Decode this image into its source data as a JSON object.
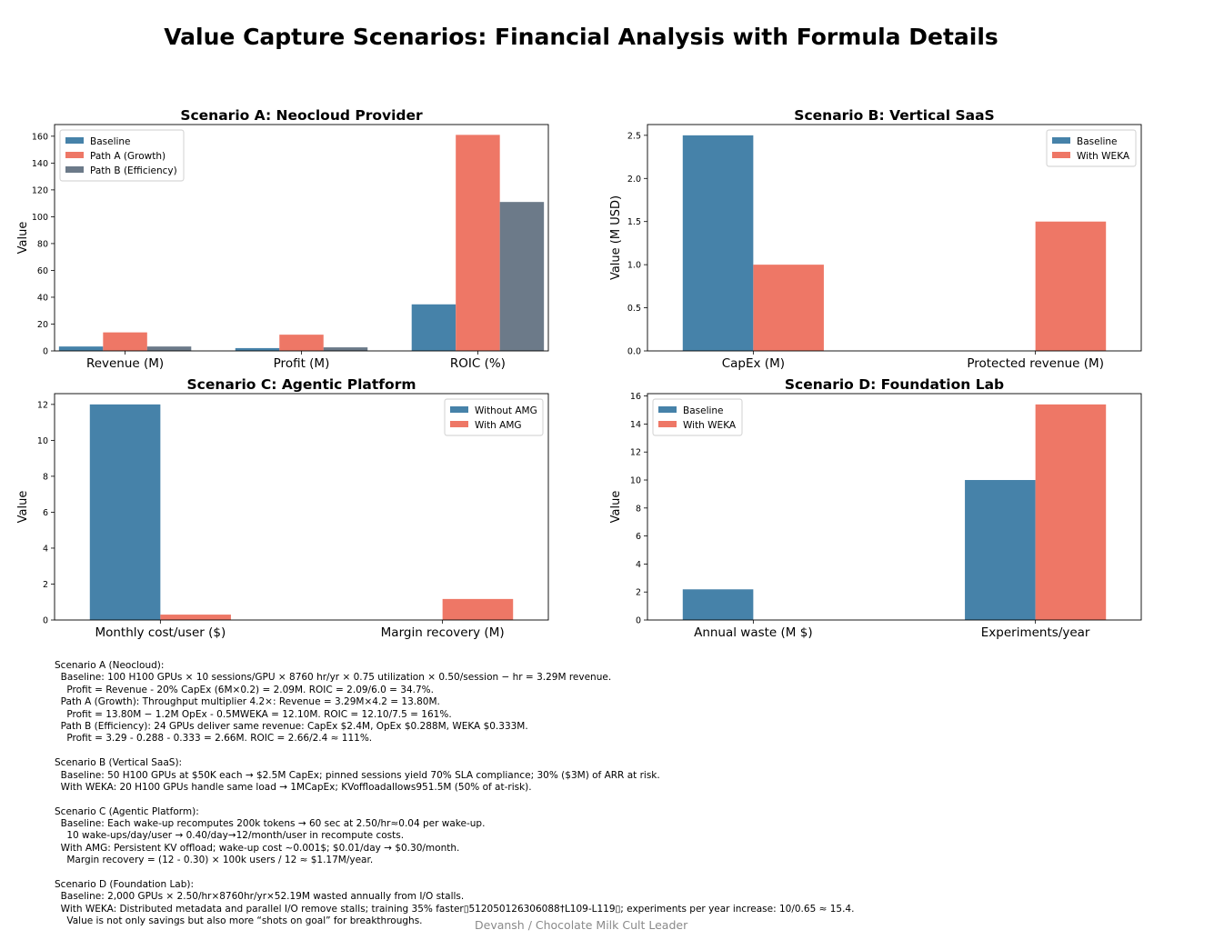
{
  "main_title": "Value Capture Scenarios: Financial Analysis with Formula Details",
  "colors": {
    "blue": "#4682a9",
    "red": "#ee7766",
    "gray": "#6c7a89"
  },
  "chart_data": [
    {
      "type": "bar",
      "title": "Scenario A: Neocloud Provider",
      "xlabel": "",
      "ylabel": "Value",
      "categories": [
        "Revenue (M)",
        "Profit (M)",
        "ROIC (%)"
      ],
      "series": [
        {
          "name": "Baseline",
          "color": "#4682a9",
          "values": [
            3.29,
            2.09,
            34.7
          ]
        },
        {
          "name": "Path A (Growth)",
          "color": "#ee7766",
          "values": [
            13.8,
            12.1,
            161
          ]
        },
        {
          "name": "Path B (Efficiency)",
          "color": "#6c7a89",
          "values": [
            3.29,
            2.66,
            111
          ]
        }
      ],
      "ylim": [
        0,
        168.7
      ],
      "yticks": [
        0,
        20,
        40,
        60,
        80,
        100,
        120,
        140,
        160
      ],
      "legend": "top-left"
    },
    {
      "type": "bar",
      "title": "Scenario B: Vertical SaaS",
      "xlabel": "",
      "ylabel": "Value (M USD)",
      "categories": [
        "CapEx (M)",
        "Protected revenue (M)"
      ],
      "series": [
        {
          "name": "Baseline",
          "color": "#4682a9",
          "values": [
            2.5,
            0
          ]
        },
        {
          "name": "With WEKA",
          "color": "#ee7766",
          "values": [
            1.0,
            1.5
          ]
        }
      ],
      "ylim": [
        0,
        2.625
      ],
      "yticks": [
        0.0,
        0.5,
        1.0,
        1.5,
        2.0,
        2.5
      ],
      "legend": "top-right"
    },
    {
      "type": "bar",
      "title": "Scenario C: Agentic Platform",
      "xlabel": "",
      "ylabel": "Value",
      "categories": [
        "Monthly cost/user ($)",
        "Margin recovery (M)"
      ],
      "series": [
        {
          "name": "Without AMG",
          "color": "#4682a9",
          "values": [
            12,
            0
          ]
        },
        {
          "name": "With AMG",
          "color": "#ee7766",
          "values": [
            0.3,
            1.17
          ]
        }
      ],
      "ylim": [
        0,
        12.6
      ],
      "yticks": [
        0,
        2,
        4,
        6,
        8,
        10,
        12
      ],
      "legend": "top-right"
    },
    {
      "type": "bar",
      "title": "Scenario D: Foundation Lab",
      "xlabel": "",
      "ylabel": "Value",
      "categories": [
        "Annual waste (M $)",
        "Experiments/year"
      ],
      "series": [
        {
          "name": "Baseline",
          "color": "#4682a9",
          "values": [
            2.19,
            10
          ]
        },
        {
          "name": "With WEKA",
          "color": "#ee7766",
          "values": [
            0,
            15.4
          ]
        }
      ],
      "ylim": [
        0,
        16.17
      ],
      "yticks": [
        0,
        2,
        4,
        6,
        8,
        10,
        12,
        14,
        16
      ],
      "legend": "top-left"
    }
  ],
  "notes": [
    "Scenario A (Neocloud):",
    "  Baseline: 100 H100 GPUs × 10 sessions/GPU × 8760 hr/yr × 0.75 utilization × 0.50/session − hr = 3.29M revenue.",
    "    Profit = Revenue - 20% CapEx (6M×0.2) = 2.09M. ROIC = 2.09/6.0 = 34.7%.",
    "  Path A (Growth): Throughput multiplier 4.2×: Revenue = 3.29M×4.2 = 13.80M.",
    "    Profit = 13.80M − 1.2M OpEx - 0.5MWEKA = 12.10M. ROIC = 12.10/7.5 = 161%.",
    "  Path B (Efficiency): 24 GPUs deliver same revenue: CapEx $2.4M, OpEx $0.288M, WEKA $0.333M.",
    "    Profit = 3.29 - 0.288 - 0.333 = 2.66M. ROIC = 2.66/2.4 ≈ 111%.",
    "",
    "Scenario B (Vertical SaaS):",
    "  Baseline: 50 H100 GPUs at $50K each → $2.5M CapEx; pinned sessions yield 70% SLA compliance; 30% ($3M) of ARR at risk.",
    "  With WEKA: 20 H100 GPUs handle same load → 1MCapEx; KVoffloadallows951.5M (50% of at-risk).",
    "",
    "Scenario C (Agentic Platform):",
    "  Baseline: Each wake-up recomputes 200k tokens → 60 sec at 2.50/hr≈0.04 per wake-up.",
    "    10 wake-ups/day/user → 0.40/day→12/month/user in recompute costs.",
    "  With AMG: Persistent KV offload; wake-up cost ~0.001$; $0.01/day → $0.30/month.",
    "    Margin recovery = (12 - 0.30) × 100k users / 12 ≈ $1.17M/year.",
    "",
    "Scenario D (Foundation Lab):",
    "  Baseline: 2,000 GPUs × 2.50/hr×8760hr/yr×52.19M wasted annually from I/O stalls.",
    "  With WEKA: Distributed metadata and parallel I/O remove stalls; training 35% faster▯512050126306088†L109-L119▯; experiments per year increase: 10/0.65 ≈ 15.4.",
    "    Value is not only savings but also more “shots on goal” for breakthroughs."
  ],
  "credit": "Devansh / Chocolate Milk Cult Leader"
}
